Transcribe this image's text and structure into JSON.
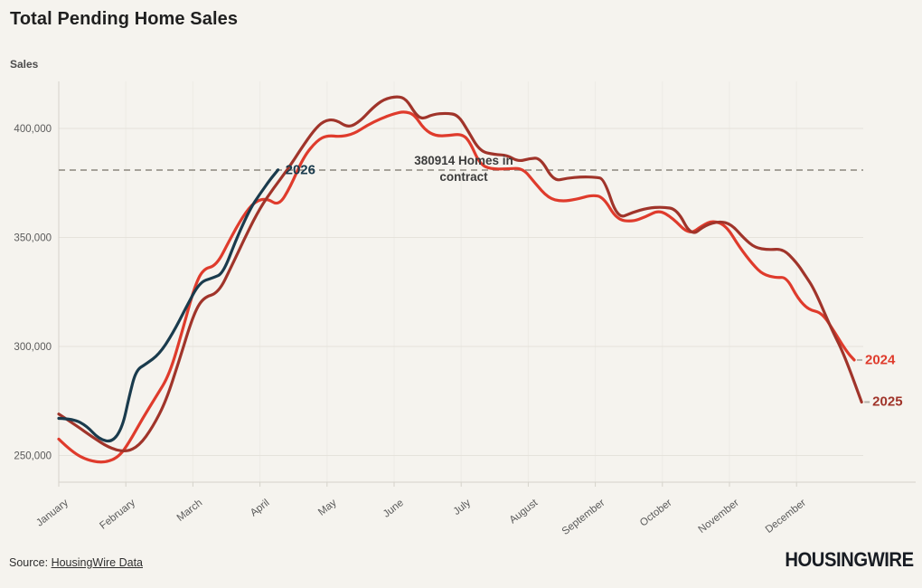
{
  "title": "Total Pending Home Sales",
  "y_axis_title": "Sales",
  "annotation": {
    "line1": "380914 Homes in",
    "line2": "contract",
    "value": 380914
  },
  "source": {
    "prefix": "Source: ",
    "link_text": "HousingWire Data"
  },
  "logo_text": "HOUSINGWIRE",
  "colors": {
    "background": "#f5f3ee",
    "grid_horizontal": "#e5e2db",
    "grid_vertical": "#edebe5",
    "axis": "#d5d2ca",
    "tick_text": "#5a5a5a",
    "dashed_reference": "#9b978e",
    "annotation_text": "#3c3c3c",
    "series_2024": "#df3b2c",
    "series_2025": "#a0342a",
    "series_2026": "#1a3b4d"
  },
  "chart_data": {
    "type": "line",
    "title": "Total Pending Home Sales",
    "ylabel": "Sales",
    "x_tick_labels": [
      "January",
      "February",
      "March",
      "April",
      "May",
      "June",
      "July",
      "August",
      "September",
      "October",
      "November",
      "December"
    ],
    "y_ticks": [
      250000,
      300000,
      350000,
      400000
    ],
    "ylim": [
      238000,
      421500
    ],
    "grid": true,
    "reference_line": {
      "value": 380914,
      "style": "dashed"
    },
    "x_unit": "month fraction, 0 = Jan 1, 11.97 = Dec 31",
    "series": [
      {
        "name": "2024",
        "color": "#df3b2c",
        "points": [
          [
            0.0,
            257500
          ],
          [
            0.2,
            251500
          ],
          [
            0.45,
            247500
          ],
          [
            0.7,
            246700
          ],
          [
            0.9,
            249500
          ],
          [
            1.05,
            256000
          ],
          [
            1.25,
            267000
          ],
          [
            1.45,
            277000
          ],
          [
            1.65,
            287000
          ],
          [
            1.85,
            308000
          ],
          [
            2.02,
            327000
          ],
          [
            2.15,
            335500
          ],
          [
            2.35,
            337000
          ],
          [
            2.55,
            349000
          ],
          [
            2.75,
            360000
          ],
          [
            2.92,
            366500
          ],
          [
            3.1,
            368000
          ],
          [
            3.28,
            364500
          ],
          [
            3.45,
            373000
          ],
          [
            3.65,
            387000
          ],
          [
            3.85,
            394500
          ],
          [
            4.0,
            396800
          ],
          [
            4.2,
            396200
          ],
          [
            4.4,
            397500
          ],
          [
            4.6,
            401500
          ],
          [
            4.8,
            404500
          ],
          [
            5.0,
            406800
          ],
          [
            5.15,
            407800
          ],
          [
            5.3,
            406500
          ],
          [
            5.45,
            399500
          ],
          [
            5.62,
            396500
          ],
          [
            5.82,
            396800
          ],
          [
            6.0,
            397500
          ],
          [
            6.12,
            394500
          ],
          [
            6.28,
            383500
          ],
          [
            6.45,
            381300
          ],
          [
            6.7,
            381500
          ],
          [
            6.92,
            381800
          ],
          [
            7.1,
            375000
          ],
          [
            7.3,
            368000
          ],
          [
            7.5,
            366500
          ],
          [
            7.72,
            367500
          ],
          [
            7.95,
            369500
          ],
          [
            8.12,
            368500
          ],
          [
            8.32,
            358200
          ],
          [
            8.55,
            357200
          ],
          [
            8.75,
            359500
          ],
          [
            8.95,
            362600
          ],
          [
            9.15,
            359000
          ],
          [
            9.4,
            351200
          ],
          [
            9.6,
            355500
          ],
          [
            9.75,
            357800
          ],
          [
            9.95,
            355500
          ],
          [
            10.15,
            345500
          ],
          [
            10.35,
            337500
          ],
          [
            10.5,
            333000
          ],
          [
            10.7,
            331500
          ],
          [
            10.85,
            331800
          ],
          [
            11.02,
            322000
          ],
          [
            11.18,
            316800
          ],
          [
            11.38,
            315500
          ],
          [
            11.58,
            306000
          ],
          [
            11.75,
            297500
          ],
          [
            11.86,
            293800
          ]
        ]
      },
      {
        "name": "2025",
        "color": "#a0342a",
        "points": [
          [
            0.0,
            269000
          ],
          [
            0.25,
            264000
          ],
          [
            0.5,
            258500
          ],
          [
            0.75,
            253500
          ],
          [
            1.0,
            251500
          ],
          [
            1.2,
            254500
          ],
          [
            1.4,
            263000
          ],
          [
            1.6,
            275000
          ],
          [
            1.8,
            294000
          ],
          [
            2.0,
            314000
          ],
          [
            2.15,
            322500
          ],
          [
            2.38,
            324500
          ],
          [
            2.58,
            337000
          ],
          [
            2.8,
            351500
          ],
          [
            3.0,
            363500
          ],
          [
            3.2,
            372500
          ],
          [
            3.42,
            381500
          ],
          [
            3.62,
            391000
          ],
          [
            3.8,
            399000
          ],
          [
            3.95,
            403500
          ],
          [
            4.12,
            404200
          ],
          [
            4.32,
            400200
          ],
          [
            4.5,
            403500
          ],
          [
            4.68,
            409500
          ],
          [
            4.85,
            413500
          ],
          [
            5.05,
            414800
          ],
          [
            5.18,
            413500
          ],
          [
            5.32,
            406500
          ],
          [
            5.42,
            404200
          ],
          [
            5.58,
            406500
          ],
          [
            5.78,
            407000
          ],
          [
            5.95,
            406300
          ],
          [
            6.1,
            399000
          ],
          [
            6.28,
            389500
          ],
          [
            6.5,
            388000
          ],
          [
            6.68,
            387800
          ],
          [
            6.85,
            384800
          ],
          [
            7.02,
            386200
          ],
          [
            7.18,
            386500
          ],
          [
            7.38,
            375800
          ],
          [
            7.58,
            377200
          ],
          [
            7.8,
            377800
          ],
          [
            8.0,
            377600
          ],
          [
            8.13,
            377000
          ],
          [
            8.33,
            358500
          ],
          [
            8.55,
            361500
          ],
          [
            8.78,
            363500
          ],
          [
            9.0,
            364000
          ],
          [
            9.22,
            363000
          ],
          [
            9.43,
            350500
          ],
          [
            9.63,
            355500
          ],
          [
            9.85,
            357500
          ],
          [
            10.03,
            356000
          ],
          [
            10.22,
            349500
          ],
          [
            10.38,
            345300
          ],
          [
            10.58,
            344300
          ],
          [
            10.8,
            344800
          ],
          [
            11.0,
            338500
          ],
          [
            11.12,
            333000
          ],
          [
            11.27,
            326000
          ],
          [
            11.52,
            308000
          ],
          [
            11.7,
            297000
          ],
          [
            11.97,
            274500
          ]
        ]
      },
      {
        "name": "2026",
        "color": "#1a3b4d",
        "points": [
          [
            0.0,
            267000
          ],
          [
            0.22,
            266800
          ],
          [
            0.42,
            263500
          ],
          [
            0.6,
            257500
          ],
          [
            0.8,
            256000
          ],
          [
            0.95,
            263000
          ],
          [
            1.05,
            277000
          ],
          [
            1.15,
            289000
          ],
          [
            1.3,
            292000
          ],
          [
            1.5,
            296500
          ],
          [
            1.7,
            306000
          ],
          [
            1.9,
            318000
          ],
          [
            2.1,
            329500
          ],
          [
            2.3,
            331500
          ],
          [
            2.45,
            333500
          ],
          [
            2.65,
            349500
          ],
          [
            2.85,
            363000
          ],
          [
            3.0,
            370000
          ],
          [
            3.15,
            376500
          ],
          [
            3.27,
            381000
          ]
        ]
      }
    ]
  }
}
